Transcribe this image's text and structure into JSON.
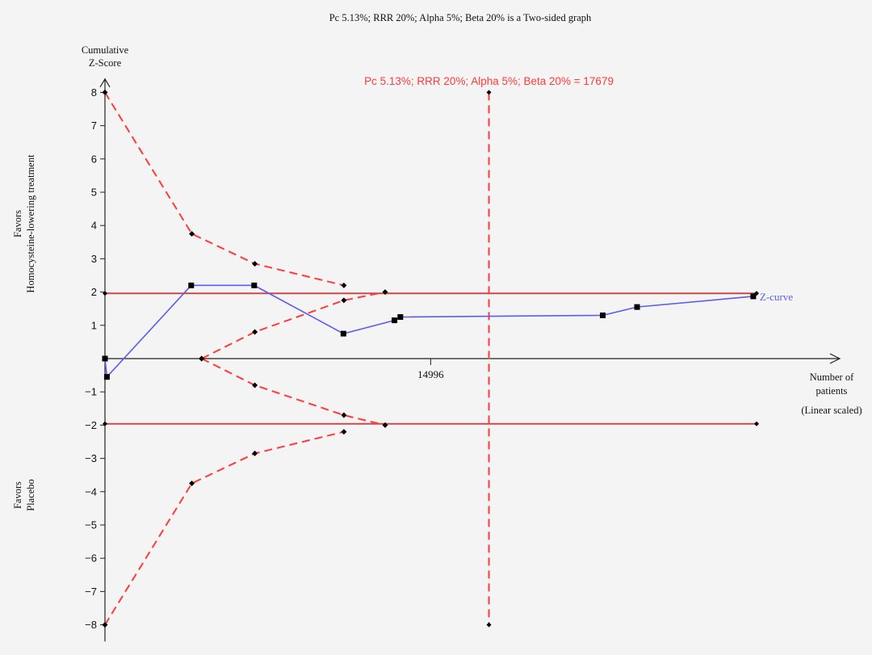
{
  "chart_data": {
    "type": "line",
    "title": "Pc 5.13%; RRR 20%; Alpha 5%; Beta 20% is a Two-sided graph",
    "ylabel_lines": [
      "Cumulative",
      "Z-Score"
    ],
    "xlabel_lines": [
      "Number of",
      "patients",
      "(Linear scaled)"
    ],
    "favor_top_lines": [
      "Favors",
      "Homocysteine-lowering treatment"
    ],
    "favor_bottom_lines": [
      "Favors",
      "Placebo"
    ],
    "ylim": [
      -8.5,
      8.5
    ],
    "xlim": [
      0,
      30000
    ],
    "yticks": [
      {
        "value": 8,
        "label": "8"
      },
      {
        "value": 7,
        "label": "7"
      },
      {
        "value": 6,
        "label": "6"
      },
      {
        "value": 5,
        "label": "5"
      },
      {
        "value": 4,
        "label": "4"
      },
      {
        "value": 3,
        "label": "3"
      },
      {
        "value": 2,
        "label": "2"
      },
      {
        "value": 1,
        "label": "1"
      },
      {
        "value": -1,
        "label": "−1"
      },
      {
        "value": -2,
        "label": "−2"
      },
      {
        "value": -3,
        "label": "−3"
      },
      {
        "value": -4,
        "label": "−4"
      },
      {
        "value": -5,
        "label": "−5"
      },
      {
        "value": -6,
        "label": "−6"
      },
      {
        "value": -7,
        "label": "−7"
      },
      {
        "value": -8,
        "label": "−8"
      }
    ],
    "xticks": [
      {
        "value": 14996,
        "label": "14996"
      }
    ],
    "required_information_size": {
      "value": 17679,
      "label": "Pc 5.13%; RRR 20%; Alpha 5%; Beta 20% = 17679"
    },
    "conventional_boundaries": [
      1.96,
      -1.96
    ],
    "conventional_boundary_x": [
      0,
      30000
    ],
    "monitoring_boundary_upper": {
      "x": [
        0,
        4000,
        6900,
        11000
      ],
      "y": [
        8.0,
        3.75,
        2.85,
        2.2
      ]
    },
    "monitoring_boundary_lower": {
      "x": [
        0,
        4000,
        6900,
        11000
      ],
      "y": [
        -8.0,
        -3.75,
        -2.85,
        -2.2
      ]
    },
    "futility_upper": {
      "x": [
        4450,
        6900,
        11000,
        12900
      ],
      "y": [
        0,
        0.8,
        1.75,
        2.0
      ]
    },
    "futility_lower": {
      "x": [
        4450,
        6900,
        11000,
        12900
      ],
      "y": [
        0,
        -0.8,
        -1.7,
        -2.0
      ]
    },
    "z_curve": {
      "name": "Z-curve",
      "x": [
        0,
        90,
        3970,
        6870,
        10980,
        13330,
        13600,
        22920,
        24500,
        29850
      ],
      "y": [
        0,
        -0.55,
        2.2,
        2.2,
        0.75,
        1.15,
        1.25,
        1.3,
        1.55,
        1.87
      ]
    },
    "colors": {
      "z_curve": "#5c5cf0",
      "monitoring": "#ff3b3b",
      "conventional": "#c84a4a",
      "axis": "#222222",
      "marker": "#000000"
    }
  }
}
